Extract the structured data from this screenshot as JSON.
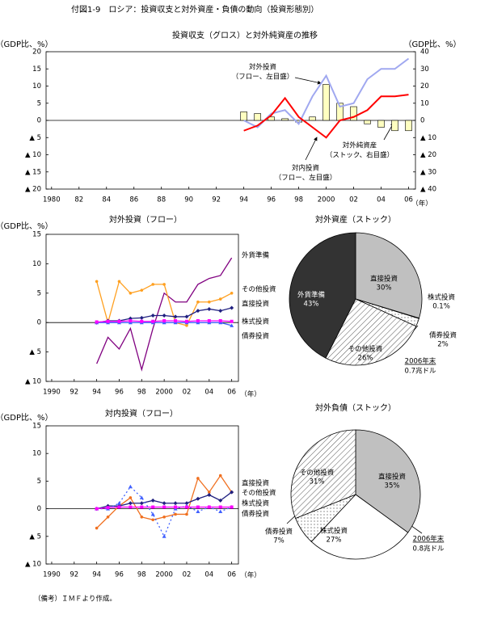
{
  "title": "付図1-9　ロシア：投資収支と対外資産・負債の動向（投資形態別）",
  "note": "（備考）ＩＭＦより作成。",
  "chart_data": [
    {
      "type": "combo",
      "title": "投資収支（グロス）と対外純資産の推移",
      "ylabel": "（GDP比、%）",
      "y2label": "（GDP比、%）",
      "xlabel": "（年）",
      "x": [
        1994,
        1995,
        1996,
        1997,
        1998,
        1999,
        2000,
        2001,
        2002,
        2003,
        2004,
        2005,
        2006
      ],
      "xlim": [
        1979.6,
        2006.5
      ],
      "xticks": [
        1980,
        {
          "value": 1982,
          "label": "82"
        },
        {
          "value": 1984,
          "label": "84"
        },
        {
          "value": 1986,
          "label": "86"
        },
        {
          "value": 1988,
          "label": "88"
        },
        {
          "value": 1990,
          "label": "90"
        },
        {
          "value": 1992,
          "label": "92"
        },
        {
          "value": 1994,
          "label": "94"
        },
        {
          "value": 1996,
          "label": "96"
        },
        {
          "value": 1998,
          "label": "98"
        },
        2000,
        {
          "value": 2002,
          "label": "02"
        },
        {
          "value": 2004,
          "label": "04"
        },
        {
          "value": 2006,
          "label": "06"
        }
      ],
      "ylim": [
        -20,
        20
      ],
      "yticks": [
        20,
        15,
        10,
        5,
        0,
        {
          "value": -5,
          "label": "▲ 5"
        },
        {
          "value": -10,
          "label": "▲ 10"
        },
        {
          "value": -15,
          "label": "▲ 15"
        },
        {
          "value": -20,
          "label": "▲ 20"
        }
      ],
      "y2lim": [
        -40,
        40
      ],
      "y2ticks": [
        40,
        30,
        20,
        10,
        0,
        {
          "value": -10,
          "label": "▲ 10"
        },
        {
          "value": -20,
          "label": "▲ 20"
        },
        {
          "value": -30,
          "label": "▲ 30"
        },
        {
          "value": -40,
          "label": "▲ 40"
        }
      ],
      "series": [
        {
          "type": "bar",
          "axis": "y2",
          "color": "#ffffc0",
          "values": [
            5,
            4,
            2,
            1,
            -1,
            2,
            21,
            10,
            8,
            -2,
            -4,
            -6,
            -6
          ]
        },
        {
          "type": "line",
          "color": "#a0a8f0",
          "values": [
            0,
            -2,
            2,
            3,
            -1,
            7,
            13,
            4,
            5,
            12,
            15,
            15,
            18
          ]
        },
        {
          "type": "line",
          "color": "#ff0000",
          "values": [
            -3,
            -1.5,
            1.5,
            6.5,
            1,
            -2,
            -5,
            0,
            1,
            3,
            7,
            7,
            7.5
          ]
        }
      ],
      "annotations": [
        [
          "対外投資",
          "（フロー、左目盛）"
        ],
        [
          "対外純資産",
          "（ストック、右目盛）"
        ],
        [
          "対内投資",
          "（フロー、左目盛）"
        ]
      ]
    },
    {
      "type": "line",
      "title": "対外投資（フロー）",
      "ylabel": "（GDP比、%）",
      "xlabel": "（年）",
      "x": [
        1994,
        1995,
        1996,
        1997,
        1998,
        1999,
        2000,
        2001,
        2002,
        2003,
        2004,
        2005,
        2006
      ],
      "xlim": [
        1989.5,
        2006.6
      ],
      "xticks": [
        1990,
        {
          "value": 1992,
          "label": "92"
        },
        {
          "value": 1994,
          "label": "94"
        },
        {
          "value": 1996,
          "label": "96"
        },
        {
          "value": 1998,
          "label": "98"
        },
        2000,
        {
          "value": 2002,
          "label": "02"
        },
        {
          "value": 2004,
          "label": "04"
        },
        {
          "value": 2006,
          "label": "06"
        }
      ],
      "ylim": [
        -10,
        15
      ],
      "yticks": [
        15,
        10,
        5,
        0,
        {
          "value": -5,
          "label": "▲ 5"
        },
        {
          "value": -10,
          "label": "▲ 10"
        }
      ],
      "series": [
        {
          "name": "外貨準備",
          "color": "#800080",
          "marker": "none",
          "values": [
            -7,
            -2.5,
            -4.5,
            -1,
            -8,
            -1,
            5,
            3.5,
            3.5,
            6.5,
            7.5,
            8,
            11
          ]
        },
        {
          "name": "その他投資",
          "color": "#ffa020",
          "marker": "circle",
          "values": [
            7,
            0,
            7,
            5,
            5.5,
            6.5,
            6.5,
            0,
            -0.5,
            3.5,
            3.5,
            4,
            5
          ]
        },
        {
          "name": "直接投資",
          "color": "#202080",
          "marker": "diamond",
          "values": [
            0,
            0.3,
            0.3,
            0.7,
            0.8,
            1.2,
            1.2,
            1,
            1,
            2,
            2.3,
            2,
            2.5
          ]
        },
        {
          "name": "株式投資",
          "color": "#4060ff",
          "marker": "triangle",
          "values": [
            0,
            0,
            0,
            0,
            0,
            0,
            0,
            0,
            0,
            0,
            0,
            0,
            -0.5
          ]
        },
        {
          "name": "債券投資",
          "color": "#ff00ff",
          "marker": "square",
          "values": [
            0.1,
            0.2,
            0.2,
            0.3,
            0.2,
            0.2,
            0.3,
            0.3,
            0.2,
            0.3,
            0.3,
            0.3,
            0.2
          ]
        }
      ]
    },
    {
      "type": "pie",
      "title": "対外資産（ストック）",
      "categories": [
        "直接投資",
        "株式投資",
        "債券投資",
        "その他投資",
        "外貨準備"
      ],
      "values": [
        30,
        0.1,
        2,
        26,
        43
      ],
      "value_labels": [
        "30%",
        "0.1%",
        "2%",
        "26%",
        "43%"
      ],
      "note": [
        "2006年末",
        "0.7兆ドル"
      ]
    },
    {
      "type": "line",
      "title": "対内投資（フロー）",
      "ylabel": "（GDP比、%）",
      "xlabel": "（年）",
      "x": [
        1994,
        1995,
        1996,
        1997,
        1998,
        1999,
        2000,
        2001,
        2002,
        2003,
        2004,
        2005,
        2006
      ],
      "xlim": [
        1989.5,
        2006.6
      ],
      "xticks": [
        1990,
        {
          "value": 1992,
          "label": "92"
        },
        {
          "value": 1994,
          "label": "94"
        },
        {
          "value": 1996,
          "label": "96"
        },
        {
          "value": 1998,
          "label": "98"
        },
        2000,
        {
          "value": 2002,
          "label": "02"
        },
        {
          "value": 2004,
          "label": "04"
        },
        {
          "value": 2006,
          "label": "06"
        }
      ],
      "ylim": [
        -10,
        15
      ],
      "yticks": [
        15,
        10,
        5,
        0,
        {
          "value": -5,
          "label": "▲ 5"
        },
        {
          "value": -10,
          "label": "▲ 10"
        }
      ],
      "series": [
        {
          "name": "直接投資",
          "color": "#f07020",
          "marker": "circle",
          "values": [
            -3.5,
            -1.5,
            0.5,
            2,
            -1.5,
            -2,
            -1.5,
            -1,
            -1,
            5.5,
            3,
            6,
            3
          ]
        },
        {
          "name": "その他投資",
          "color": "#202080",
          "marker": "diamond",
          "values": [
            0,
            0.5,
            0.5,
            1,
            1,
            1.5,
            1,
            1,
            1,
            1.8,
            2.5,
            1.5,
            3
          ]
        },
        {
          "name": "株式投資",
          "color": "#4060ff",
          "marker": "triangle",
          "dash": true,
          "values": [
            0,
            0,
            1,
            4,
            2,
            -1,
            -5,
            0,
            0.5,
            -0.5,
            0.3,
            -0.5,
            0.3
          ]
        },
        {
          "name": "債券投資",
          "color": "#ff00ff",
          "marker": "square",
          "values": [
            0,
            0.2,
            0.3,
            0.3,
            0.3,
            0.3,
            0.3,
            0.3,
            0.3,
            0.3,
            0.3,
            0.3,
            0.3
          ]
        }
      ]
    },
    {
      "type": "pie",
      "title": "対外負債（ストック）",
      "categories": [
        "直接投資",
        "株式投資",
        "債券投資",
        "その他投資"
      ],
      "values": [
        35,
        27,
        7,
        31
      ],
      "value_labels": [
        "35%",
        "27%",
        "7%",
        "31%"
      ],
      "note": [
        "2006年末",
        "0.8兆ドル"
      ]
    }
  ]
}
